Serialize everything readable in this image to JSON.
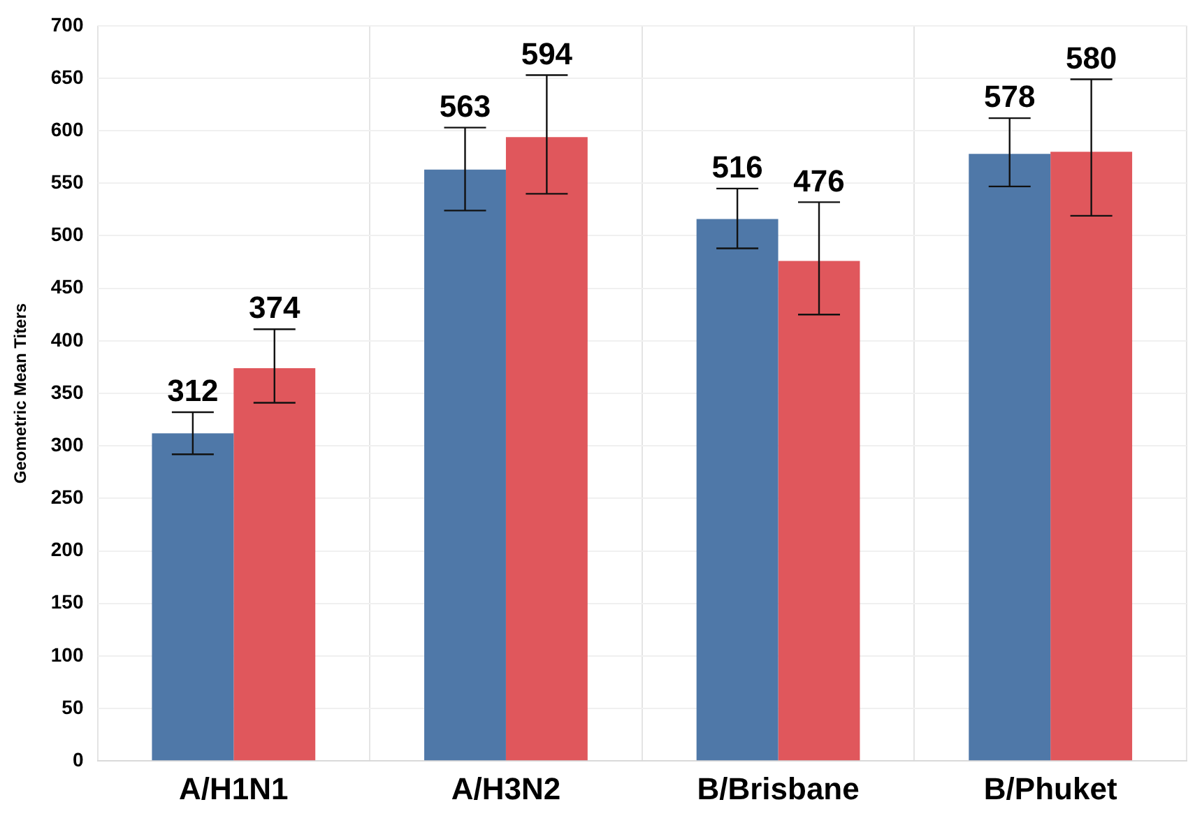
{
  "chart_data": {
    "type": "bar",
    "ylabel": "Geometric Mean Titers",
    "categories": [
      "A/H1N1",
      "A/H3N2",
      "B/Brisbane",
      "B/Phuket"
    ],
    "series": [
      {
        "color": "#4f78a8",
        "values": [
          312,
          563,
          516,
          578
        ],
        "errors": [
          [
            292,
            332
          ],
          [
            524,
            603
          ],
          [
            488,
            545
          ],
          [
            547,
            612
          ]
        ]
      },
      {
        "color": "#e0575c",
        "values": [
          374,
          594,
          476,
          580
        ],
        "errors": [
          [
            341,
            411
          ],
          [
            540,
            653
          ],
          [
            425,
            532
          ],
          [
            519,
            649
          ]
        ]
      }
    ],
    "ylim": [
      0,
      700
    ],
    "yticks": [
      0,
      50,
      100,
      150,
      200,
      250,
      300,
      350,
      400,
      450,
      500,
      550,
      600,
      650,
      700
    ],
    "grid": true,
    "legend": false,
    "data_labels": true
  }
}
